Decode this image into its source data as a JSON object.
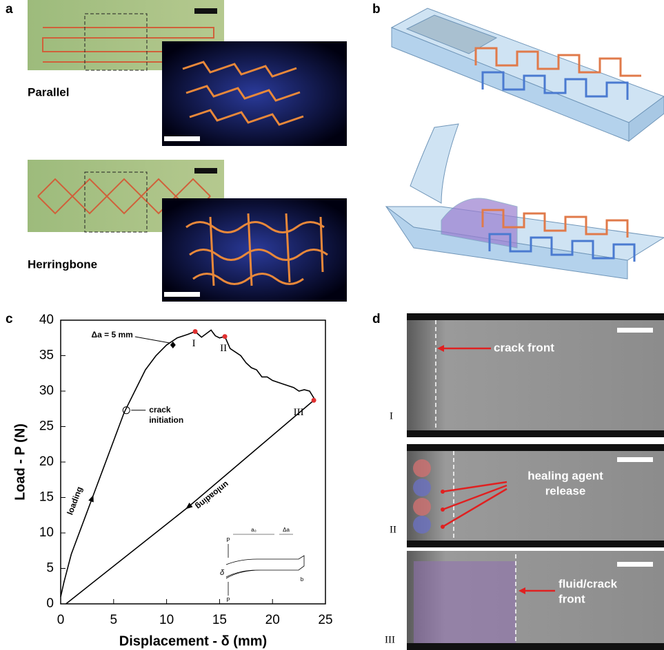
{
  "panel_labels": [
    "a",
    "b",
    "c",
    "d"
  ],
  "panel_a": {
    "captions": [
      "Parallel",
      "Herringbone"
    ]
  },
  "chart_data": {
    "type": "line",
    "xlabel": "Displacement - δ (mm)",
    "ylabel": "Load - P (N)",
    "xlim": [
      0,
      25
    ],
    "ylim": [
      0,
      40
    ],
    "xticks": [
      0,
      5,
      10,
      15,
      20,
      25
    ],
    "yticks": [
      0,
      5,
      10,
      15,
      20,
      25,
      30,
      35,
      40
    ],
    "series": [
      {
        "name": "loading",
        "color": "#000000",
        "x": [
          0,
          0.3,
          1,
          2,
          3,
          4,
          5,
          6,
          7,
          8,
          9,
          10,
          11,
          12,
          12.7,
          13.3,
          14.2,
          14.6,
          15,
          15.5,
          16,
          16.5,
          17,
          17.5,
          18,
          18.5,
          19,
          19.5,
          20,
          21,
          22,
          22.5,
          23,
          23.5,
          24
        ],
        "values": [
          1,
          3,
          7,
          11,
          15,
          19,
          23,
          27,
          30,
          33,
          35,
          36.5,
          37.5,
          38,
          38.4,
          37.6,
          38.6,
          37.8,
          37.5,
          37.7,
          36,
          35.5,
          35,
          34,
          33.3,
          33,
          32,
          32,
          31.5,
          31,
          30.5,
          30,
          30.2,
          30,
          28.8
        ]
      },
      {
        "name": "unloading",
        "color": "#000000",
        "x": [
          23.9,
          12,
          0.5
        ],
        "values": [
          28.7,
          13.6,
          0
        ]
      }
    ],
    "markers": [
      {
        "label": "I",
        "x": 12.7,
        "y": 38.4,
        "color": "#e03030"
      },
      {
        "label": "II",
        "x": 15.5,
        "y": 37.7,
        "color": "#e03030"
      },
      {
        "label": "III",
        "x": 23.9,
        "y": 28.7,
        "color": "#e03030"
      }
    ],
    "annotations": [
      {
        "text": "Δa = 5 mm",
        "x": 10.6,
        "y": 36.5,
        "marker": "diamond"
      },
      {
        "lines": [
          "crack",
          "initiation"
        ],
        "x": 6.2,
        "y": 27.3,
        "marker": "circle"
      }
    ],
    "inset_labels": [
      "P",
      "a₀",
      "Δa",
      "δ",
      "b",
      "P"
    ]
  },
  "panel_d": {
    "stages": [
      "I",
      "II",
      "III"
    ],
    "annotations": [
      [
        "crack front"
      ],
      [
        "healing agent",
        "release"
      ],
      [
        "fluid/crack",
        "front"
      ]
    ]
  }
}
